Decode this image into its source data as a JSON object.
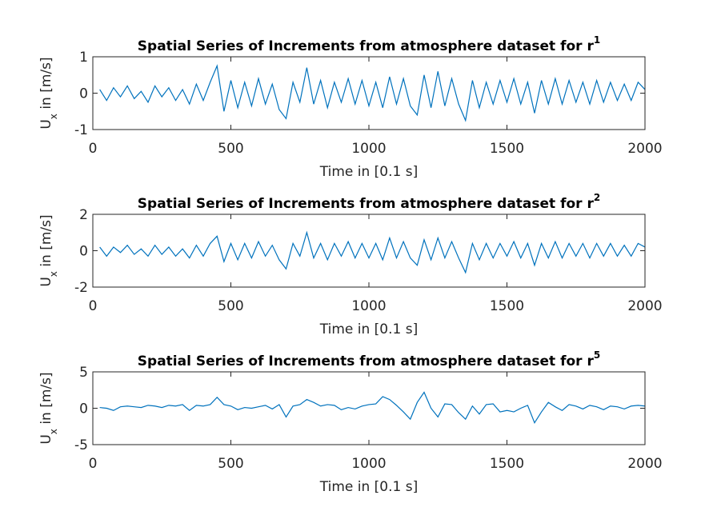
{
  "chart_data": [
    {
      "type": "line",
      "title": "Spatial Series of Increments from atmosphere dataset for r",
      "title_exponent": "1",
      "ylabel": [
        "U",
        "x",
        " in [m/s]"
      ],
      "xlabel": "Time in [0.1 s]",
      "xlim": [
        0,
        2000
      ],
      "xticks": [
        0,
        500,
        1000,
        1500,
        2000
      ],
      "ylim": [
        -1,
        1
      ],
      "yticks": [
        -1,
        0,
        1
      ],
      "series": [
        {
          "color": "#0072bd",
          "x": [
            25,
            50,
            75,
            100,
            125,
            150,
            175,
            200,
            225,
            250,
            275,
            300,
            325,
            350,
            375,
            400,
            425,
            450,
            475,
            500,
            525,
            550,
            575,
            600,
            625,
            650,
            675,
            700,
            725,
            750,
            775,
            800,
            825,
            850,
            875,
            900,
            925,
            950,
            975,
            1000,
            1025,
            1050,
            1075,
            1100,
            1125,
            1150,
            1175,
            1200,
            1225,
            1250,
            1275,
            1300,
            1325,
            1350,
            1375,
            1400,
            1425,
            1450,
            1475,
            1500,
            1525,
            1550,
            1575,
            1600,
            1625,
            1650,
            1675,
            1700,
            1725,
            1750,
            1775,
            1800,
            1825,
            1850,
            1875,
            1900,
            1925,
            1950,
            1975,
            2000
          ],
          "values": [
            0.1,
            -0.2,
            0.15,
            -0.1,
            0.2,
            -0.15,
            0.05,
            -0.25,
            0.2,
            -0.1,
            0.15,
            -0.2,
            0.1,
            -0.3,
            0.25,
            -0.2,
            0.3,
            0.75,
            -0.5,
            0.35,
            -0.4,
            0.3,
            -0.35,
            0.4,
            -0.3,
            0.25,
            -0.45,
            -0.7,
            0.3,
            -0.25,
            0.7,
            -0.3,
            0.35,
            -0.4,
            0.3,
            -0.25,
            0.4,
            -0.3,
            0.35,
            -0.35,
            0.3,
            -0.4,
            0.45,
            -0.3,
            0.4,
            -0.35,
            -0.6,
            0.5,
            -0.4,
            0.6,
            -0.35,
            0.4,
            -0.3,
            -0.75,
            0.35,
            -0.4,
            0.3,
            -0.3,
            0.35,
            -0.25,
            0.4,
            -0.3,
            0.3,
            -0.55,
            0.35,
            -0.3,
            0.4,
            -0.3,
            0.35,
            -0.25,
            0.3,
            -0.3,
            0.35,
            -0.25,
            0.3,
            -0.2,
            0.25,
            -0.2,
            0.3,
            0.1
          ]
        }
      ]
    },
    {
      "type": "line",
      "title": "Spatial Series of Increments from atmosphere dataset for r",
      "title_exponent": "2",
      "ylabel": [
        "U",
        "x",
        " in [m/s]"
      ],
      "xlabel": "Time in [0.1 s]",
      "xlim": [
        0,
        2000
      ],
      "xticks": [
        0,
        500,
        1000,
        1500,
        2000
      ],
      "ylim": [
        -2,
        2
      ],
      "yticks": [
        -2,
        0,
        2
      ],
      "series": [
        {
          "color": "#0072bd",
          "x": [
            25,
            50,
            75,
            100,
            125,
            150,
            175,
            200,
            225,
            250,
            275,
            300,
            325,
            350,
            375,
            400,
            425,
            450,
            475,
            500,
            525,
            550,
            575,
            600,
            625,
            650,
            675,
            700,
            725,
            750,
            775,
            800,
            825,
            850,
            875,
            900,
            925,
            950,
            975,
            1000,
            1025,
            1050,
            1075,
            1100,
            1125,
            1150,
            1175,
            1200,
            1225,
            1250,
            1275,
            1300,
            1325,
            1350,
            1375,
            1400,
            1425,
            1450,
            1475,
            1500,
            1525,
            1550,
            1575,
            1600,
            1625,
            1650,
            1675,
            1700,
            1725,
            1750,
            1775,
            1800,
            1825,
            1850,
            1875,
            1900,
            1925,
            1950,
            1975,
            2000
          ],
          "values": [
            0.2,
            -0.3,
            0.2,
            -0.1,
            0.3,
            -0.2,
            0.1,
            -0.3,
            0.3,
            -0.2,
            0.2,
            -0.3,
            0.1,
            -0.4,
            0.3,
            -0.3,
            0.4,
            0.8,
            -0.6,
            0.4,
            -0.5,
            0.4,
            -0.4,
            0.5,
            -0.3,
            0.3,
            -0.5,
            -1.0,
            0.4,
            -0.3,
            1.0,
            -0.4,
            0.4,
            -0.5,
            0.4,
            -0.3,
            0.5,
            -0.4,
            0.4,
            -0.4,
            0.4,
            -0.5,
            0.7,
            -0.4,
            0.5,
            -0.4,
            -0.8,
            0.6,
            -0.5,
            0.7,
            -0.4,
            0.5,
            -0.4,
            -1.2,
            0.4,
            -0.5,
            0.4,
            -0.4,
            0.4,
            -0.3,
            0.5,
            -0.4,
            0.4,
            -0.8,
            0.4,
            -0.4,
            0.5,
            -0.4,
            0.4,
            -0.3,
            0.4,
            -0.4,
            0.4,
            -0.3,
            0.4,
            -0.3,
            0.3,
            -0.3,
            0.4,
            0.2
          ]
        }
      ]
    },
    {
      "type": "line",
      "title": "Spatial Series of Increments from atmosphere dataset for r",
      "title_exponent": "5",
      "ylabel": [
        "U",
        "x",
        " in [m/s]"
      ],
      "xlabel": "Time in [0.1 s]",
      "xlim": [
        0,
        2000
      ],
      "xticks": [
        0,
        500,
        1000,
        1500,
        2000
      ],
      "ylim": [
        -5,
        5
      ],
      "yticks": [
        -5,
        0,
        5
      ],
      "series": [
        {
          "color": "#0072bd",
          "x": [
            25,
            50,
            75,
            100,
            125,
            150,
            175,
            200,
            225,
            250,
            275,
            300,
            325,
            350,
            375,
            400,
            425,
            450,
            475,
            500,
            525,
            550,
            575,
            600,
            625,
            650,
            675,
            700,
            725,
            750,
            775,
            800,
            825,
            850,
            875,
            900,
            925,
            950,
            975,
            1000,
            1025,
            1050,
            1075,
            1100,
            1125,
            1150,
            1175,
            1200,
            1225,
            1250,
            1275,
            1300,
            1325,
            1350,
            1375,
            1400,
            1425,
            1450,
            1475,
            1500,
            1525,
            1550,
            1575,
            1600,
            1625,
            1650,
            1675,
            1700,
            1725,
            1750,
            1775,
            1800,
            1825,
            1850,
            1875,
            1900,
            1925,
            1950,
            1975,
            2000
          ],
          "values": [
            0.1,
            0,
            -0.3,
            0.2,
            0.3,
            0.2,
            0.1,
            0.4,
            0.3,
            0.1,
            0.4,
            0.3,
            0.5,
            -0.3,
            0.4,
            0.3,
            0.5,
            1.5,
            0.5,
            0.3,
            -0.2,
            0.1,
            0,
            0.2,
            0.4,
            -0.1,
            0.5,
            -1.2,
            0.3,
            0.5,
            1.2,
            0.8,
            0.3,
            0.5,
            0.4,
            -0.2,
            0.1,
            -0.1,
            0.3,
            0.5,
            0.6,
            1.6,
            1.2,
            0.4,
            -0.5,
            -1.5,
            0.8,
            2.2,
            0,
            -1.2,
            0.6,
            0.5,
            -0.6,
            -1.5,
            0.3,
            -0.8,
            0.5,
            0.6,
            -0.5,
            -0.3,
            -0.5,
            0,
            0.4,
            -2.0,
            -0.5,
            0.8,
            0.2,
            -0.3,
            0.5,
            0.3,
            -0.1,
            0.4,
            0.2,
            -0.2,
            0.3,
            0.2,
            -0.1,
            0.3,
            0.4,
            0.3
          ]
        }
      ]
    }
  ]
}
